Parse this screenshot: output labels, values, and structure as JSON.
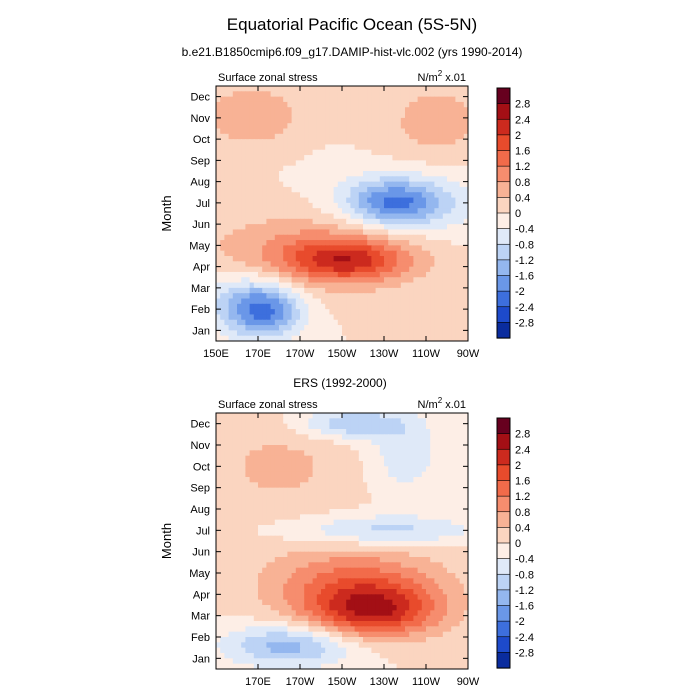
{
  "figure": {
    "title": "Equatorial Pacific Ocean (5S-5N)",
    "subtitle_top": "b.e21.B1850cmip6.f09_g17.DAMIP-hist-vlc.002 (yrs 1990-2014)",
    "subtitle_bottom": "ERS (1992-2000)"
  },
  "chart_data": [
    {
      "type": "heatmap",
      "panel": "top",
      "left_label": "Surface zonal stress",
      "right_label": "N/m",
      "right_label_exp": "2",
      "right_label_suffix": " x.01",
      "ylabel": "Month",
      "xlabel": "",
      "y_tick_labels": [
        "Jan",
        "Feb",
        "Mar",
        "Apr",
        "May",
        "Jun",
        "Jul",
        "Aug",
        "Sep",
        "Oct",
        "Nov",
        "Dec"
      ],
      "x_tick_labels": [
        "150E",
        "170E",
        "170W",
        "150W",
        "130W",
        "110W",
        "90W"
      ],
      "x_ticks_lon": [
        150,
        170,
        190,
        210,
        230,
        250,
        270
      ],
      "xlim": [
        150,
        270
      ],
      "ylim": [
        1,
        12
      ],
      "levels": [
        -2.8,
        -2.4,
        -2,
        -1.6,
        -1.2,
        -0.8,
        -0.4,
        0,
        0.4,
        0.8,
        1.2,
        1.6,
        2,
        2.4,
        2.8
      ],
      "features": [
        {
          "lon": 174,
          "month": 1.9,
          "value": -1.8,
          "sx": 12,
          "sy": 0.9
        },
        {
          "lon": 160,
          "month": 2.3,
          "value": -0.8,
          "sx": 14,
          "sy": 1.0
        },
        {
          "lon": 235,
          "month": 7.0,
          "value": -1.8,
          "sx": 16,
          "sy": 0.75
        },
        {
          "lon": 247,
          "month": 7.0,
          "value": -0.6,
          "sx": 30,
          "sy": 1.5
        },
        {
          "lon": 212,
          "month": 4.3,
          "value": 1.7,
          "sx": 20,
          "sy": 0.7
        },
        {
          "lon": 200,
          "month": 4.8,
          "value": 0.9,
          "sx": 38,
          "sy": 1.3
        },
        {
          "lon": 167,
          "month": 11.1,
          "value": 0.8,
          "sx": 16,
          "sy": 1.0
        },
        {
          "lon": 255,
          "month": 10.6,
          "value": 0.6,
          "sx": 20,
          "sy": 1.6
        }
      ]
    },
    {
      "type": "heatmap",
      "panel": "bottom",
      "left_label": "Surface zonal stress",
      "right_label": "N/m",
      "right_label_exp": "2",
      "right_label_suffix": " x.01",
      "ylabel": "Month",
      "xlabel": "",
      "y_tick_labels": [
        "Jan",
        "Feb",
        "Mar",
        "Apr",
        "May",
        "Jun",
        "Jul",
        "Aug",
        "Sep",
        "Oct",
        "Nov",
        "Dec"
      ],
      "x_tick_labels": [
        "170E",
        "170W",
        "150W",
        "130W",
        "110W",
        "90W"
      ],
      "x_ticks_lon": [
        170,
        190,
        210,
        230,
        250,
        270
      ],
      "xlim": [
        150,
        270
      ],
      "ylim": [
        1,
        12
      ],
      "levels": [
        -2.8,
        -2.4,
        -2,
        -1.6,
        -1.2,
        -0.8,
        -0.4,
        0,
        0.4,
        0.8,
        1.2,
        1.6,
        2,
        2.4,
        2.8
      ],
      "features": [
        {
          "lon": 225,
          "month": 3.2,
          "value": 2.1,
          "sx": 22,
          "sy": 0.9
        },
        {
          "lon": 215,
          "month": 4.6,
          "value": 1.2,
          "sx": 30,
          "sy": 1.2
        },
        {
          "lon": 185,
          "month": 1.6,
          "value": -1.4,
          "sx": 22,
          "sy": 0.7
        },
        {
          "lon": 230,
          "month": 7.0,
          "value": -1.0,
          "sx": 30,
          "sy": 0.5
        },
        {
          "lon": 215,
          "month": 12.0,
          "value": -1.2,
          "sx": 18,
          "sy": 0.5
        },
        {
          "lon": 240,
          "month": 10.5,
          "value": -0.7,
          "sx": 12,
          "sy": 1.2
        },
        {
          "lon": 180,
          "month": 10.0,
          "value": 0.5,
          "sx": 25,
          "sy": 1.6
        }
      ]
    }
  ],
  "colorbar": {
    "labels": [
      "2.8",
      "2.4",
      "2",
      "1.6",
      "1.2",
      "0.8",
      "0.4",
      "0",
      "-0.4",
      "-0.8",
      "-1.2",
      "-1.6",
      "-2",
      "-2.4",
      "-2.8"
    ],
    "colors": [
      "#67001f",
      "#a30f15",
      "#cc2a1e",
      "#e84b2c",
      "#f26b4a",
      "#f68d6e",
      "#f8b295",
      "#fbd5c0",
      "#fdeee6",
      "#dfe9f8",
      "#bcd3f5",
      "#94b7ef",
      "#6a97e8",
      "#3d6fdd",
      "#1d4acb",
      "#0a2c9e"
    ]
  }
}
